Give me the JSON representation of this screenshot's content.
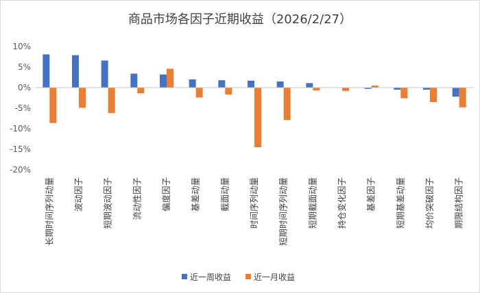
{
  "chart_data": {
    "type": "bar",
    "title": "商品市场各因子近期收益（2026/2/27）",
    "xlabel": "",
    "ylabel": "",
    "ylim": [
      -20,
      10
    ],
    "yticks": [
      "10%",
      "5%",
      "0%",
      "-5%",
      "-10%",
      "-15%",
      "-20%"
    ],
    "ytick_values": [
      10,
      5,
      0,
      -5,
      -10,
      -15,
      -20
    ],
    "grid": false,
    "legend_position": "bottom",
    "categories": [
      "长期时间序列动量",
      "波动因子",
      "短期波动因子",
      "流动性因子",
      "偏度因子",
      "基差动量",
      "截面动量",
      "时间序列动量",
      "短期时间序列动量",
      "短期截面动量",
      "持仓变化因子",
      "基差因子",
      "短期基差动量",
      "均价突破因子",
      "期限结构因子"
    ],
    "series": [
      {
        "name": "近一周收益",
        "color": "#4472C4",
        "values": [
          8.1,
          7.9,
          6.6,
          3.4,
          3.2,
          2.0,
          1.8,
          1.7,
          1.5,
          1.1,
          0.0,
          -0.3,
          -0.5,
          -0.5,
          -2.2
        ]
      },
      {
        "name": "近一月收益",
        "color": "#ED7D31",
        "values": [
          -8.6,
          -4.9,
          -6.2,
          -1.4,
          4.6,
          -2.4,
          -1.7,
          -14.5,
          -7.9,
          -0.7,
          -0.8,
          0.5,
          -2.6,
          -3.5,
          -4.8
        ]
      }
    ]
  }
}
